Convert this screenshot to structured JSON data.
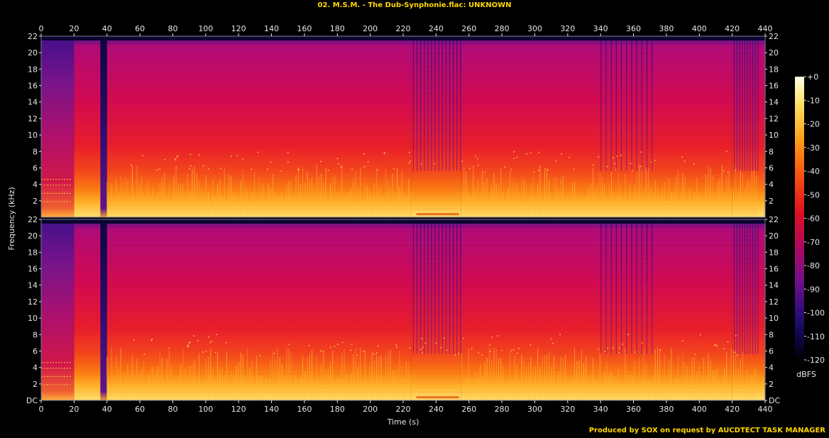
{
  "title": "02. M.S.M. - The Dub-Synphonie.flac: UNKNOWN",
  "footer": "Produced by SOX on request by AUCDTECT TASK MANAGER",
  "colors": {
    "background": "#000000",
    "text": "#e6e6e6",
    "title": "#ffd700",
    "frame": "#7878a0"
  },
  "chart_data": {
    "type": "heatmap",
    "title": "02. M.S.M. - The Dub-Synphonie.flac: UNKNOWN",
    "xlabel": "Time (s)",
    "ylabel": "Frequency (kHz)",
    "xlim": [
      0,
      440
    ],
    "ylim": [
      0,
      22
    ],
    "x_ticks": [
      "0",
      "20",
      "40",
      "60",
      "80",
      "100",
      "120",
      "140",
      "160",
      "180",
      "200",
      "220",
      "240",
      "260",
      "280",
      "300",
      "320",
      "340",
      "360",
      "380",
      "400",
      "420",
      "440"
    ],
    "y_ticks": [
      "DC",
      "2",
      "4",
      "6",
      "8",
      "10",
      "12",
      "14",
      "16",
      "18",
      "20",
      "22"
    ],
    "y_ticks_top_channel": [
      "2",
      "4",
      "6",
      "8",
      "10",
      "12",
      "14",
      "16",
      "18",
      "20",
      "22"
    ],
    "channels": [
      "left",
      "right"
    ],
    "colorbar": {
      "label": "dBFS",
      "range": [
        -120,
        0
      ],
      "ticks": [
        "+0",
        "-10",
        "-20",
        "-30",
        "-40",
        "-50",
        "-60",
        "-70",
        "-80",
        "-90",
        "-100",
        "-110",
        "-120"
      ]
    },
    "segments": [
      {
        "start": 0,
        "end": 20,
        "character": "quiet intro, tonal low-frequency lines, up to ~21.5 kHz"
      },
      {
        "start": 20,
        "end": 36,
        "character": "rising low-frequency energy"
      },
      {
        "start": 36,
        "end": 40,
        "character": "near-silence gap"
      },
      {
        "start": 40,
        "end": 225,
        "character": "full-band energy, loud below ~6 kHz"
      },
      {
        "start": 225,
        "end": 255,
        "character": "break section with vertical transient streaks"
      },
      {
        "start": 255,
        "end": 420,
        "character": "full-band energy, loud below ~6 kHz"
      },
      {
        "start": 420,
        "end": 440,
        "character": "fading outro with streaks"
      }
    ]
  }
}
